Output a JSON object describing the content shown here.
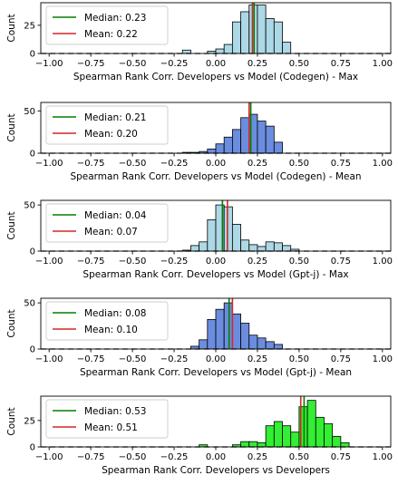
{
  "chart_data": [
    {
      "type": "histogram",
      "xlabel": "Spearman Rank Corr. Developers vs Model (Codegen) - Max",
      "ylabel": "Count",
      "xlim": [
        -1.05,
        1.05
      ],
      "ylim": [
        0,
        45
      ],
      "yticks": [
        0,
        25
      ],
      "xticks": [
        "−1.00",
        "−0.75",
        "−0.50",
        "−0.25",
        "0.00",
        "0.25",
        "0.50",
        "0.75",
        "1.00"
      ],
      "xtick_values": [
        -1.0,
        -0.75,
        -0.5,
        -0.25,
        0.0,
        0.25,
        0.5,
        0.75,
        1.0
      ],
      "bar_color": "#add8e6",
      "bins": [
        {
          "x0": -0.2,
          "x1": -0.15,
          "count": 3
        },
        {
          "x0": -0.15,
          "x1": -0.1,
          "count": 0
        },
        {
          "x0": -0.1,
          "x1": -0.05,
          "count": 0
        },
        {
          "x0": -0.05,
          "x1": 0.0,
          "count": 2
        },
        {
          "x0": 0.0,
          "x1": 0.05,
          "count": 4
        },
        {
          "x0": 0.05,
          "x1": 0.1,
          "count": 8
        },
        {
          "x0": 0.1,
          "x1": 0.15,
          "count": 28
        },
        {
          "x0": 0.15,
          "x1": 0.2,
          "count": 37
        },
        {
          "x0": 0.2,
          "x1": 0.25,
          "count": 43
        },
        {
          "x0": 0.25,
          "x1": 0.3,
          "count": 43
        },
        {
          "x0": 0.3,
          "x1": 0.35,
          "count": 31
        },
        {
          "x0": 0.35,
          "x1": 0.4,
          "count": 28
        },
        {
          "x0": 0.4,
          "x1": 0.45,
          "count": 10
        }
      ],
      "median": 0.23,
      "mean": 0.22,
      "median_color": "#008000",
      "mean_color": "#d62728",
      "legend": {
        "placement": "upper-left",
        "median_label": "Median: 0.23",
        "mean_label": "Mean: 0.22"
      }
    },
    {
      "type": "histogram",
      "xlabel": "Spearman Rank Corr. Developers vs Model (Codegen) - Mean",
      "ylabel": "Count",
      "xlim": [
        -1.05,
        1.05
      ],
      "ylim": [
        0,
        60
      ],
      "yticks": [
        0,
        50
      ],
      "xticks": [
        "−1.00",
        "−0.75",
        "−0.50",
        "−0.25",
        "0.00",
        "0.25",
        "0.50",
        "0.75",
        "1.00"
      ],
      "xtick_values": [
        -1.0,
        -0.75,
        -0.5,
        -0.25,
        0.0,
        0.25,
        0.5,
        0.75,
        1.0
      ],
      "bar_color": "#6b8ddf",
      "bins": [
        {
          "x0": -0.2,
          "x1": -0.15,
          "count": 1
        },
        {
          "x0": -0.15,
          "x1": -0.1,
          "count": 1
        },
        {
          "x0": -0.1,
          "x1": -0.05,
          "count": 2
        },
        {
          "x0": -0.05,
          "x1": 0.0,
          "count": 5
        },
        {
          "x0": 0.0,
          "x1": 0.05,
          "count": 11
        },
        {
          "x0": 0.05,
          "x1": 0.1,
          "count": 19
        },
        {
          "x0": 0.1,
          "x1": 0.15,
          "count": 28
        },
        {
          "x0": 0.15,
          "x1": 0.2,
          "count": 42
        },
        {
          "x0": 0.2,
          "x1": 0.25,
          "count": 46
        },
        {
          "x0": 0.25,
          "x1": 0.3,
          "count": 38
        },
        {
          "x0": 0.3,
          "x1": 0.35,
          "count": 32
        },
        {
          "x0": 0.35,
          "x1": 0.4,
          "count": 13
        }
      ],
      "median": 0.21,
      "mean": 0.2,
      "median_color": "#008000",
      "mean_color": "#d62728",
      "legend": {
        "placement": "upper-left",
        "median_label": "Median: 0.21",
        "mean_label": "Mean: 0.20"
      }
    },
    {
      "type": "histogram",
      "xlabel": "Spearman Rank Corr. Developers vs Model (Gpt-j) - Max",
      "ylabel": "Count",
      "xlim": [
        -1.05,
        1.05
      ],
      "ylim": [
        0,
        55
      ],
      "yticks": [
        0,
        50
      ],
      "xticks": [
        "−1.00",
        "−0.75",
        "−0.50",
        "−0.25",
        "0.00",
        "0.25",
        "0.50",
        "0.75",
        "1.00"
      ],
      "xtick_values": [
        -1.0,
        -0.75,
        -0.5,
        -0.25,
        0.0,
        0.25,
        0.5,
        0.75,
        1.0
      ],
      "bar_color": "#add8e6",
      "bins": [
        {
          "x0": -0.2,
          "x1": -0.15,
          "count": 1
        },
        {
          "x0": -0.15,
          "x1": -0.1,
          "count": 6
        },
        {
          "x0": -0.1,
          "x1": -0.05,
          "count": 10
        },
        {
          "x0": -0.05,
          "x1": 0.0,
          "count": 34
        },
        {
          "x0": 0.0,
          "x1": 0.05,
          "count": 50
        },
        {
          "x0": 0.05,
          "x1": 0.1,
          "count": 48
        },
        {
          "x0": 0.1,
          "x1": 0.15,
          "count": 29
        },
        {
          "x0": 0.15,
          "x1": 0.2,
          "count": 12
        },
        {
          "x0": 0.2,
          "x1": 0.25,
          "count": 7
        },
        {
          "x0": 0.25,
          "x1": 0.3,
          "count": 5
        },
        {
          "x0": 0.3,
          "x1": 0.35,
          "count": 10
        },
        {
          "x0": 0.35,
          "x1": 0.4,
          "count": 9
        },
        {
          "x0": 0.4,
          "x1": 0.45,
          "count": 6
        },
        {
          "x0": 0.45,
          "x1": 0.5,
          "count": 2
        }
      ],
      "median": 0.04,
      "mean": 0.07,
      "median_color": "#008000",
      "mean_color": "#d62728",
      "legend": {
        "placement": "upper-left",
        "median_label": "Median: 0.04",
        "mean_label": "Mean: 0.07"
      }
    },
    {
      "type": "histogram",
      "xlabel": "Spearman Rank Corr. Developers vs Model (Gpt-j) - Mean",
      "ylabel": "Count",
      "xlim": [
        -1.05,
        1.05
      ],
      "ylim": [
        0,
        55
      ],
      "yticks": [
        0,
        50
      ],
      "xticks": [
        "−1.00",
        "−0.75",
        "−0.50",
        "−0.25",
        "0.00",
        "0.25",
        "0.50",
        "0.75",
        "1.00"
      ],
      "xtick_values": [
        -1.0,
        -0.75,
        -0.5,
        -0.25,
        0.0,
        0.25,
        0.5,
        0.75,
        1.0
      ],
      "bar_color": "#6b8ddf",
      "bins": [
        {
          "x0": -0.15,
          "x1": -0.1,
          "count": 3
        },
        {
          "x0": -0.1,
          "x1": -0.05,
          "count": 10
        },
        {
          "x0": -0.05,
          "x1": 0.0,
          "count": 32
        },
        {
          "x0": 0.0,
          "x1": 0.05,
          "count": 43
        },
        {
          "x0": 0.05,
          "x1": 0.1,
          "count": 50
        },
        {
          "x0": 0.1,
          "x1": 0.15,
          "count": 38
        },
        {
          "x0": 0.15,
          "x1": 0.2,
          "count": 28
        },
        {
          "x0": 0.2,
          "x1": 0.25,
          "count": 15
        },
        {
          "x0": 0.25,
          "x1": 0.3,
          "count": 12
        },
        {
          "x0": 0.3,
          "x1": 0.35,
          "count": 8
        },
        {
          "x0": 0.35,
          "x1": 0.4,
          "count": 5
        }
      ],
      "median": 0.08,
      "mean": 0.1,
      "median_color": "#008000",
      "mean_color": "#d62728",
      "legend": {
        "placement": "upper-left",
        "median_label": "Median: 0.08",
        "mean_label": "Mean: 0.10"
      }
    },
    {
      "type": "histogram",
      "xlabel": "Spearman Rank Corr. Developers vs Developers",
      "ylabel": "Count",
      "xlim": [
        -1.05,
        1.05
      ],
      "ylim": [
        0,
        48
      ],
      "yticks": [
        0,
        25
      ],
      "xticks": [
        "−1.00",
        "−0.75",
        "−0.50",
        "−0.25",
        "0.00",
        "0.25",
        "0.50",
        "0.75",
        "1.00"
      ],
      "xtick_values": [
        -1.0,
        -0.75,
        -0.5,
        -0.25,
        0.0,
        0.25,
        0.5,
        0.75,
        1.0
      ],
      "bar_color": "#33ee33",
      "bins": [
        {
          "x0": -0.1,
          "x1": -0.05,
          "count": 2
        },
        {
          "x0": 0.1,
          "x1": 0.15,
          "count": 2
        },
        {
          "x0": 0.15,
          "x1": 0.2,
          "count": 5
        },
        {
          "x0": 0.2,
          "x1": 0.25,
          "count": 5
        },
        {
          "x0": 0.25,
          "x1": 0.3,
          "count": 4
        },
        {
          "x0": 0.3,
          "x1": 0.35,
          "count": 20
        },
        {
          "x0": 0.35,
          "x1": 0.4,
          "count": 24
        },
        {
          "x0": 0.4,
          "x1": 0.45,
          "count": 20
        },
        {
          "x0": 0.45,
          "x1": 0.5,
          "count": 14
        },
        {
          "x0": 0.5,
          "x1": 0.55,
          "count": 38
        },
        {
          "x0": 0.55,
          "x1": 0.6,
          "count": 44
        },
        {
          "x0": 0.6,
          "x1": 0.65,
          "count": 28
        },
        {
          "x0": 0.65,
          "x1": 0.7,
          "count": 22
        },
        {
          "x0": 0.7,
          "x1": 0.75,
          "count": 10
        },
        {
          "x0": 0.75,
          "x1": 0.8,
          "count": 4
        }
      ],
      "median": 0.53,
      "mean": 0.51,
      "median_color": "#008000",
      "mean_color": "#d62728",
      "legend": {
        "placement": "upper-left",
        "median_label": "Median: 0.53",
        "mean_label": "Mean: 0.51"
      }
    }
  ]
}
